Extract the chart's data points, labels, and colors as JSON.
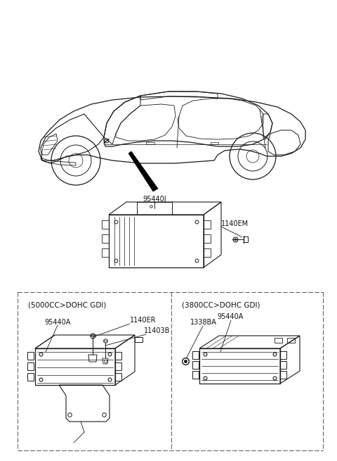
{
  "bg_color": "#ffffff",
  "line_color": "#1a1a1a",
  "dash_color": "#555555",
  "label_color": "#111111",
  "figsize": [
    4.8,
    6.55
  ],
  "dpi": 100,
  "car_label": "95440J",
  "mid_label": "95440J",
  "mid_bolt_label": "1140EM",
  "box1_title": "(5000CC>DOHC GDI)",
  "box2_title": "(3800CC>DOHC GDI)",
  "box1_label1": "95440A",
  "box1_label2": "1140ER",
  "box1_label3": "11403B",
  "box2_label1": "1338BA",
  "box2_label2": "95440A"
}
